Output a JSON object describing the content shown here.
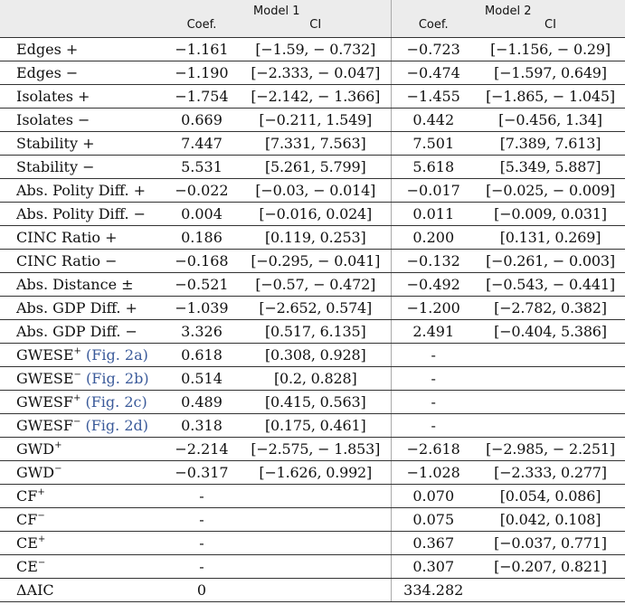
{
  "header": {
    "model1": "Model 1",
    "model2": "Model 2",
    "coef_label": "Coef.",
    "ci_label": "CI"
  },
  "rows": [
    {
      "label": "Edges +",
      "sup": "",
      "ref": "",
      "coef1": "−1.161",
      "ci1": "[−1.59, − 0.732]",
      "coef2": "−0.723",
      "ci2": "[−1.156, − 0.29]"
    },
    {
      "label": "Edges −",
      "sup": "",
      "ref": "",
      "coef1": "−1.190",
      "ci1": "[−2.333, − 0.047]",
      "coef2": "−0.474",
      "ci2": "[−1.597, 0.649]"
    },
    {
      "label": "Isolates +",
      "sup": "",
      "ref": "",
      "coef1": "−1.754",
      "ci1": "[−2.142, − 1.366]",
      "coef2": "−1.455",
      "ci2": "[−1.865, − 1.045]"
    },
    {
      "label": "Isolates −",
      "sup": "",
      "ref": "",
      "coef1": "0.669",
      "ci1": "[−0.211, 1.549]",
      "coef2": "0.442",
      "ci2": "[−0.456, 1.34]"
    },
    {
      "label": "Stability +",
      "sup": "",
      "ref": "",
      "coef1": "7.447",
      "ci1": "[7.331, 7.563]",
      "coef2": "7.501",
      "ci2": "[7.389, 7.613]"
    },
    {
      "label": "Stability −",
      "sup": "",
      "ref": "",
      "coef1": "5.531",
      "ci1": "[5.261, 5.799]",
      "coef2": "5.618",
      "ci2": "[5.349, 5.887]"
    },
    {
      "label": "Abs. Polity Diff. +",
      "sup": "",
      "ref": "",
      "coef1": "−0.022",
      "ci1": "[−0.03, − 0.014]",
      "coef2": "−0.017",
      "ci2": "[−0.025, − 0.009]"
    },
    {
      "label": "Abs. Polity Diff. −",
      "sup": "",
      "ref": "",
      "coef1": "0.004",
      "ci1": "[−0.016, 0.024]",
      "coef2": "0.011",
      "ci2": "[−0.009, 0.031]"
    },
    {
      "label": "CINC Ratio +",
      "sup": "",
      "ref": "",
      "coef1": "0.186",
      "ci1": "[0.119, 0.253]",
      "coef2": "0.200",
      "ci2": "[0.131, 0.269]"
    },
    {
      "label": "CINC Ratio −",
      "sup": "",
      "ref": "",
      "coef1": "−0.168",
      "ci1": "[−0.295, − 0.041]",
      "coef2": "−0.132",
      "ci2": "[−0.261, − 0.003]"
    },
    {
      "label": "Abs. Distance ±",
      "sup": "",
      "ref": "",
      "coef1": "−0.521",
      "ci1": "[−0.57, − 0.472]",
      "coef2": "−0.492",
      "ci2": "[−0.543, − 0.441]"
    },
    {
      "label": "Abs. GDP Diff. +",
      "sup": "",
      "ref": "",
      "coef1": "−1.039",
      "ci1": "[−2.652, 0.574]",
      "coef2": "−1.200",
      "ci2": "[−2.782, 0.382]"
    },
    {
      "label": "Abs. GDP Diff. −",
      "sup": "",
      "ref": "",
      "coef1": "3.326",
      "ci1": "[0.517, 6.135]",
      "coef2": "2.491",
      "ci2": "[−0.404, 5.386]"
    },
    {
      "label": "GWESE",
      "sup": "+",
      "ref": " (Fig. 2a)",
      "coef1": "0.618",
      "ci1": "[0.308, 0.928]",
      "coef2": "-",
      "ci2": ""
    },
    {
      "label": "GWESE",
      "sup": "−",
      "ref": " (Fig. 2b)",
      "coef1": "0.514",
      "ci1": "[0.2, 0.828]",
      "coef2": "-",
      "ci2": ""
    },
    {
      "label": "GWESF",
      "sup": "+",
      "ref": " (Fig. 2c)",
      "coef1": "0.489",
      "ci1": "[0.415, 0.563]",
      "coef2": "-",
      "ci2": ""
    },
    {
      "label": "GWESF",
      "sup": "−",
      "ref": " (Fig. 2d)",
      "coef1": "0.318",
      "ci1": "[0.175, 0.461]",
      "coef2": "-",
      "ci2": ""
    },
    {
      "label": "GWD",
      "sup": "+",
      "ref": "",
      "coef1": "−2.214",
      "ci1": "[−2.575, − 1.853]",
      "coef2": "−2.618",
      "ci2": "[−2.985, − 2.251]"
    },
    {
      "label": "GWD",
      "sup": "−",
      "ref": "",
      "coef1": "−0.317",
      "ci1": "[−1.626, 0.992]",
      "coef2": "−1.028",
      "ci2": "[−2.333, 0.277]"
    },
    {
      "label": "CF",
      "sup": "+",
      "ref": "",
      "coef1": "-",
      "ci1": "",
      "coef2": "0.070",
      "ci2": "[0.054, 0.086]"
    },
    {
      "label": "CF",
      "sup": "−",
      "ref": "",
      "coef1": "-",
      "ci1": "",
      "coef2": "0.075",
      "ci2": "[0.042, 0.108]"
    },
    {
      "label": "CE",
      "sup": "+",
      "ref": "",
      "coef1": "-",
      "ci1": "",
      "coef2": "0.367",
      "ci2": "[−0.037, 0.771]"
    },
    {
      "label": "CE",
      "sup": "−",
      "ref": "",
      "coef1": "-",
      "ci1": "",
      "coef2": "0.307",
      "ci2": "[−0.207, 0.821]"
    },
    {
      "label": "ΔAIC",
      "sup": "",
      "ref": "",
      "coef1": "0",
      "ci1": "",
      "coef2": "334.282",
      "ci2": ""
    }
  ]
}
